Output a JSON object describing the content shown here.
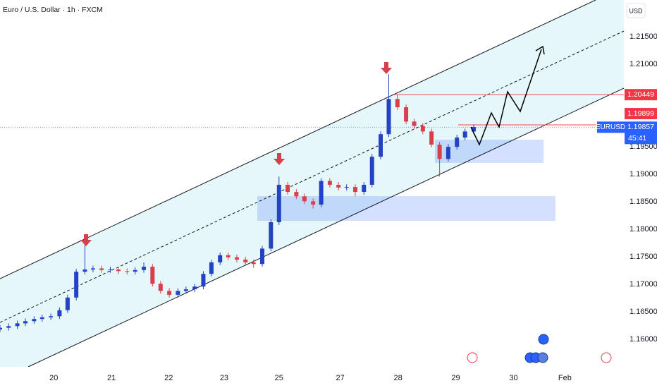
{
  "chart_data": {
    "type": "candlestick",
    "title": "Euro / U.S. Dollar · 1h · FXCM",
    "currency_label": "USD",
    "up_color": "#2342c4",
    "down_color": "#d6404c",
    "xlim": [
      -0.93,
      9.87
    ],
    "ylim": [
      1.155,
      1.2217
    ],
    "xticks": [
      {
        "value": 0,
        "label": "20"
      },
      {
        "value": 1,
        "label": "21"
      },
      {
        "value": 1.99,
        "label": "22"
      },
      {
        "value": 2.95,
        "label": "23"
      },
      {
        "value": 3.9,
        "label": "25"
      },
      {
        "value": 4.96,
        "label": "27"
      },
      {
        "value": 5.96,
        "label": "28"
      },
      {
        "value": 6.96,
        "label": "29"
      },
      {
        "value": 7.96,
        "label": "30"
      },
      {
        "value": 8.85,
        "label": "Feb"
      }
    ],
    "yticks": [
      {
        "value": 1.215,
        "label": "1.21500"
      },
      {
        "value": 1.21,
        "label": "1.21000"
      },
      {
        "value": 1.195,
        "label": "1.19500"
      },
      {
        "value": 1.19,
        "label": "1.19000"
      },
      {
        "value": 1.185,
        "label": "1.18500"
      },
      {
        "value": 1.18,
        "label": "1.18000"
      },
      {
        "value": 1.175,
        "label": "1.17500"
      },
      {
        "value": 1.17,
        "label": "1.17000"
      },
      {
        "value": 1.165,
        "label": "1.16500"
      },
      {
        "value": 1.16,
        "label": "1.16000"
      }
    ],
    "x": [
      -0.93,
      -0.78,
      -0.63,
      -0.49,
      -0.34,
      -0.2,
      -0.05,
      0.1,
      0.24,
      0.39,
      0.54,
      0.68,
      0.83,
      0.98,
      1.12,
      1.27,
      1.41,
      1.56,
      1.71,
      1.85,
      2.0,
      2.15,
      2.29,
      2.44,
      2.59,
      2.73,
      2.88,
      3.02,
      3.17,
      3.32,
      3.46,
      3.61,
      3.76,
      3.9,
      4.05,
      4.2,
      4.34,
      4.49,
      4.63,
      4.78,
      4.93,
      5.07,
      5.22,
      5.37,
      5.51,
      5.66,
      5.8,
      5.95,
      6.1,
      6.24,
      6.39,
      6.54,
      6.68,
      6.83,
      6.98,
      7.12,
      7.27
    ],
    "open": [
      1.1618,
      1.1621,
      1.1624,
      1.1629,
      1.1633,
      1.1637,
      1.164,
      1.1642,
      1.1653,
      1.1676,
      1.1723,
      1.1727,
      1.1729,
      1.1726,
      1.1727,
      1.1724,
      1.1723,
      1.1726,
      1.1732,
      1.1701,
      1.1688,
      1.1681,
      1.1688,
      1.1691,
      1.1696,
      1.1719,
      1.174,
      1.1753,
      1.1749,
      1.1745,
      1.174,
      1.1737,
      1.1765,
      1.1813,
      1.1881,
      1.1868,
      1.186,
      1.1851,
      1.1845,
      1.1888,
      1.1881,
      1.1876,
      1.1877,
      1.1868,
      1.1881,
      1.1932,
      1.1973,
      1.2037,
      1.2022,
      1.1996,
      1.1988,
      1.1978,
      1.1954,
      1.1928,
      1.195,
      1.1967,
      1.1978
    ],
    "high": [
      1.1626,
      1.1629,
      1.1634,
      1.1638,
      1.1642,
      1.1645,
      1.1647,
      1.1658,
      1.1681,
      1.1728,
      1.1791,
      1.1734,
      1.1734,
      1.1732,
      1.1732,
      1.1729,
      1.1731,
      1.174,
      1.1737,
      1.1706,
      1.1693,
      1.1693,
      1.1696,
      1.1701,
      1.1724,
      1.1745,
      1.1758,
      1.1758,
      1.1754,
      1.175,
      1.1745,
      1.177,
      1.1818,
      1.1896,
      1.1886,
      1.1873,
      1.1865,
      1.1856,
      1.1893,
      1.1893,
      1.1886,
      1.1882,
      1.1882,
      1.1886,
      1.1937,
      1.1978,
      1.2082,
      1.2045,
      1.2027,
      1.2001,
      1.1993,
      1.1983,
      1.1959,
      1.1955,
      1.1972,
      1.1983,
      1.1991
    ],
    "low": [
      1.1613,
      1.1616,
      1.1619,
      1.1624,
      1.1628,
      1.1632,
      1.1635,
      1.1637,
      1.1648,
      1.1671,
      1.1718,
      1.1722,
      1.1721,
      1.1721,
      1.1719,
      1.1718,
      1.1718,
      1.1721,
      1.1696,
      1.1683,
      1.1676,
      1.1676,
      1.1683,
      1.1686,
      1.1691,
      1.1714,
      1.1735,
      1.1744,
      1.174,
      1.1735,
      1.173,
      1.1732,
      1.176,
      1.1808,
      1.1863,
      1.1855,
      1.1846,
      1.1838,
      1.184,
      1.1876,
      1.1871,
      1.1871,
      1.186,
      1.1863,
      1.1876,
      1.1927,
      1.1968,
      1.2017,
      1.1991,
      1.1983,
      1.1973,
      1.1949,
      1.1896,
      1.1923,
      1.1945,
      1.1962,
      1.1973
    ],
    "close": [
      1.1621,
      1.1624,
      1.1629,
      1.1633,
      1.1637,
      1.164,
      1.1642,
      1.1653,
      1.1676,
      1.1723,
      1.1727,
      1.1729,
      1.1726,
      1.1727,
      1.1724,
      1.1723,
      1.1726,
      1.1732,
      1.1701,
      1.1688,
      1.1681,
      1.1688,
      1.1691,
      1.1696,
      1.1719,
      1.174,
      1.1753,
      1.1749,
      1.1745,
      1.174,
      1.1737,
      1.1765,
      1.1813,
      1.1881,
      1.1868,
      1.186,
      1.1851,
      1.1845,
      1.1888,
      1.1881,
      1.1876,
      1.1877,
      1.1868,
      1.1881,
      1.1932,
      1.1973,
      1.2037,
      1.2022,
      1.1996,
      1.1988,
      1.1978,
      1.1954,
      1.1928,
      1.195,
      1.1967,
      1.1978,
      1.1986
    ],
    "price_lines": [
      {
        "value": 1.20449,
        "color": "#f23645"
      },
      {
        "value": 1.19899,
        "color": "#f23645"
      },
      {
        "symbol": "EURUSD",
        "value": 1.19857,
        "countdown": "45:41",
        "color": "#2962ff"
      }
    ]
  }
}
